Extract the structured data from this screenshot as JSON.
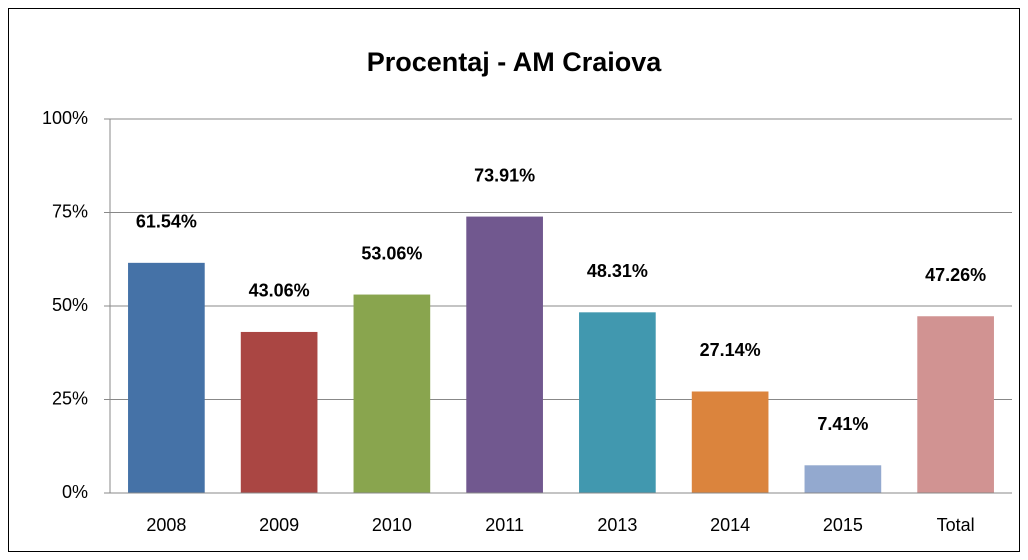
{
  "chart_data": {
    "type": "bar",
    "title": "Procentaj - AM Craiova",
    "categories": [
      "2008",
      "2009",
      "2010",
      "2011",
      "2013",
      "2014",
      "2015",
      "Total"
    ],
    "values": [
      61.54,
      43.06,
      53.06,
      73.91,
      48.31,
      27.14,
      7.41,
      47.26
    ],
    "value_labels": [
      "61.54%",
      "43.06%",
      "53.06%",
      "73.91%",
      "48.31%",
      "27.14%",
      "7.41%",
      "47.26%"
    ],
    "colors": [
      "#4572a7",
      "#aa4643",
      "#89a54e",
      "#71588f",
      "#4198af",
      "#db843d",
      "#93a9cf",
      "#d19392"
    ],
    "ylim": [
      0,
      100
    ],
    "yticks": [
      {
        "value": 0,
        "label": "0%"
      },
      {
        "value": 25,
        "label": "25%"
      },
      {
        "value": 50,
        "label": "50%"
      },
      {
        "value": 75,
        "label": "75%"
      },
      {
        "value": 100,
        "label": "100%"
      }
    ],
    "grid": true
  }
}
